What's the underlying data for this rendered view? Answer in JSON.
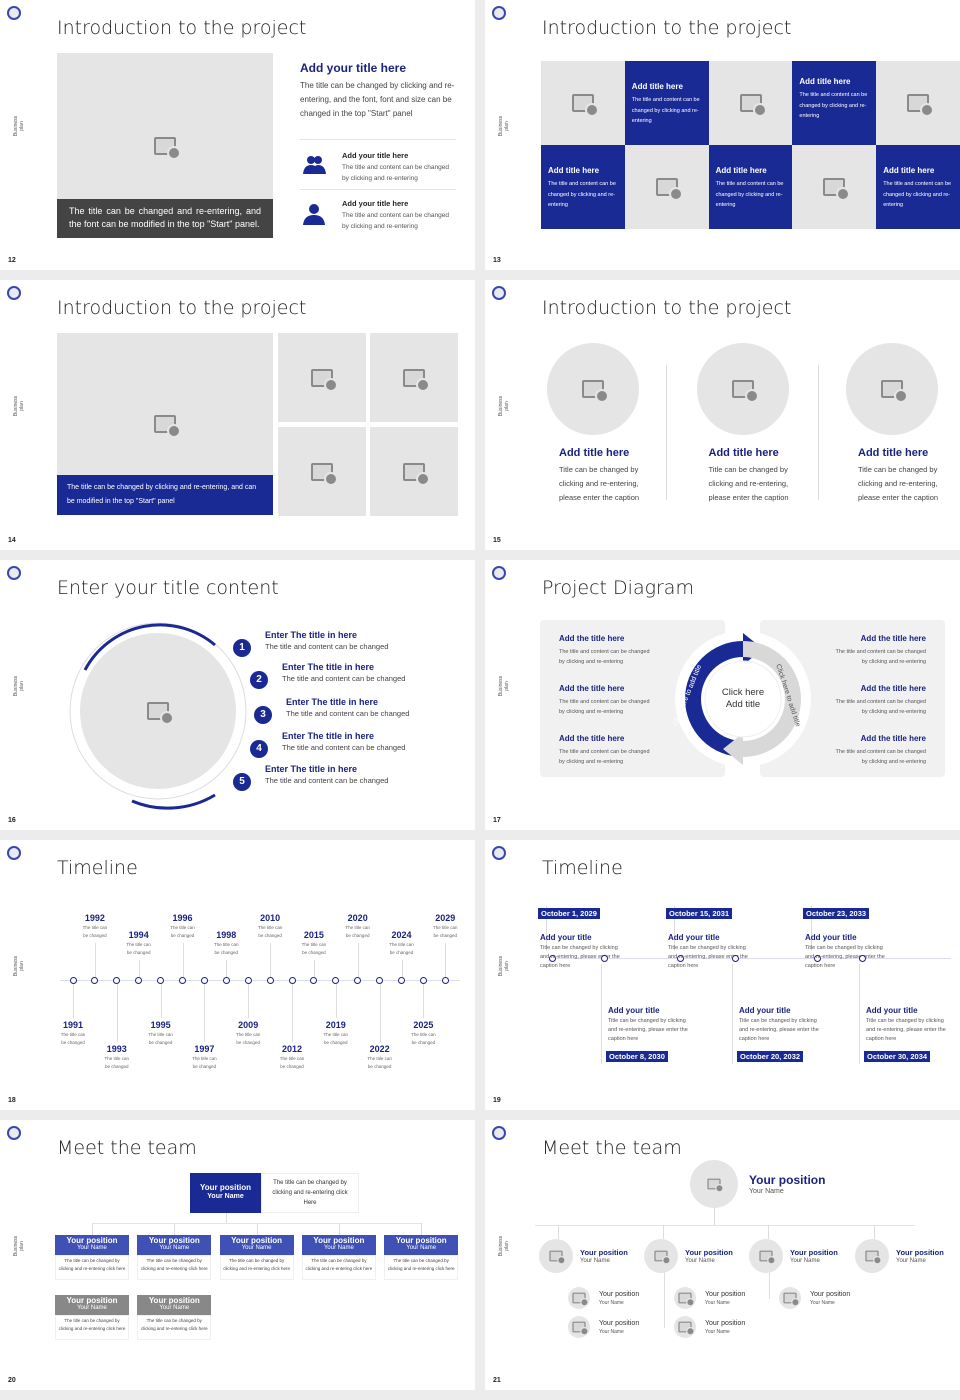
{
  "common": {
    "side_label": "Business plan",
    "accent": "#1a2a94",
    "placeholder_gray": "#e6e5e6"
  },
  "s12": {
    "page": "12",
    "title": "Introduction to the project",
    "caption": "The title can be changed and re-entering, and the font can be modified in the top \"Start\" panel.",
    "heading": "Add your title here",
    "para": "The title can be changed by clicking and re-entering, and the font, font and size can be changed in the top \"Start\" panel",
    "items": [
      {
        "icon": "users-icon",
        "title": "Add your title here",
        "text": "The title and content can be changed by clicking and re-entering"
      },
      {
        "icon": "user-icon",
        "title": "Add your title here",
        "text": "The title and content can be changed by clicking and re-entering"
      }
    ]
  },
  "s13": {
    "page": "13",
    "title": "Introduction to the project",
    "cards": [
      {
        "title": "Add title here",
        "text": "The title and content can be changed by clicking and re-entering"
      },
      {
        "title": "Add title here",
        "text": "The title and content can be changed by clicking and re-entering"
      },
      {
        "title": "Add title here",
        "text": "The title and content can be changed by clicking and re-entering"
      },
      {
        "title": "Add title here",
        "text": "The title and content can be changed by clicking and re-entering"
      },
      {
        "title": "Add title here",
        "text": "The title and content can be changed by clicking and re-entering"
      }
    ]
  },
  "s14": {
    "page": "14",
    "title": "Introduction to the project",
    "caption": "The title can be changed by clicking and re-entering, and can be modified in the top \"Start\" panel"
  },
  "s15": {
    "page": "15",
    "title": "Introduction to the project",
    "cols": [
      {
        "title": "Add title here",
        "text": "Title can be changed by clicking and re-entering, please enter the caption"
      },
      {
        "title": "Add title here",
        "text": "Title can be changed by clicking and re-entering, please enter the caption"
      },
      {
        "title": "Add title here",
        "text": "Title can be changed by clicking and re-entering, please enter the caption"
      }
    ]
  },
  "s16": {
    "page": "16",
    "title": "Enter your title content",
    "items": [
      {
        "n": "1",
        "title": "Enter The title in here",
        "text": "The title and content can be changed"
      },
      {
        "n": "2",
        "title": "Enter The title in here",
        "text": "The title and content can be changed"
      },
      {
        "n": "3",
        "title": "Enter The title in here",
        "text": "The title and content can be changed"
      },
      {
        "n": "4",
        "title": "Enter The title in here",
        "text": "The title and content can be changed"
      },
      {
        "n": "5",
        "title": "Enter The title in here",
        "text": "The title and content can be changed"
      }
    ]
  },
  "s17": {
    "page": "17",
    "title": "Project Diagram",
    "center": "Click here Add title",
    "arc_left": "Click here to add title",
    "arc_right": "Click here to add title",
    "items": [
      {
        "title": "Add the title here",
        "text": "The title and content can be changed by clicking and re-entering"
      },
      {
        "title": "Add the title here",
        "text": "The title and content can be changed by clicking and re-entering"
      },
      {
        "title": "Add the title here",
        "text": "The title and content can be changed by clicking and re-entering"
      },
      {
        "title": "Add the title here",
        "text": "The title and content can be changed by clicking and re-entering"
      },
      {
        "title": "Add the title here",
        "text": "The title and content can be changed by clicking and re-entering"
      },
      {
        "title": "Add the title here",
        "text": "The title and content can be changed by clicking and re-entering"
      }
    ]
  },
  "s18": {
    "page": "18",
    "title": "Timeline",
    "caption": "The title can be changed",
    "years": [
      "1991",
      "1992",
      "1993",
      "1994",
      "1995",
      "1996",
      "1997",
      "1998",
      "2009",
      "2010",
      "2012",
      "2015",
      "2019",
      "2020",
      "2022",
      "2024",
      "2025",
      "2029"
    ]
  },
  "s19": {
    "page": "19",
    "title": "Timeline",
    "events": [
      {
        "date": "October 1, 2029",
        "title": "Add your title",
        "text": "Title can be changed by clicking and re-entering, please enter the caption here"
      },
      {
        "date": "October 8, 2030",
        "title": "Add your title",
        "text": "Title can be changed by clicking and re-entering, please enter the caption here"
      },
      {
        "date": "October 15, 2031",
        "title": "Add your title",
        "text": "Title can be changed by clicking and re-entering, please enter the caption here"
      },
      {
        "date": "October 20, 2032",
        "title": "Add your title",
        "text": "Title can be changed by clicking and re-entering, please enter the caption here"
      },
      {
        "date": "October 23, 2033",
        "title": "Add your title",
        "text": "Title can be changed by clicking and re-entering, please enter the caption here"
      },
      {
        "date": "October 30, 2034",
        "title": "Add your title",
        "text": "Title can be changed by clicking and re-entering, please enter the caption here"
      }
    ]
  },
  "s20": {
    "page": "20",
    "title": "Meet the team",
    "top": {
      "position": "Your position",
      "name": "Your Name",
      "text": "The title can be changed by clicking and re-entering click Here"
    },
    "members": [
      {
        "position": "Your position",
        "name": "Your Name",
        "text": "The title can be changed by clicking and re-entering click here"
      },
      {
        "position": "Your position",
        "name": "Your Name",
        "text": "The title can be changed by clicking and re-entering click here"
      },
      {
        "position": "Your position",
        "name": "Your Name",
        "text": "The title can be changed by clicking and re-entering click here"
      },
      {
        "position": "Your position",
        "name": "Your Name",
        "text": "The title can be changed by clicking and re-entering click here"
      },
      {
        "position": "Your position",
        "name": "Your Name",
        "text": "The title can be changed by clicking and re-entering click here"
      },
      {
        "position": "Your position",
        "name": "Your Name",
        "text": "The title can be changed by clicking and re-entering click here"
      },
      {
        "position": "Your position",
        "name": "Your Name",
        "text": "The title can be changed by clicking and re-entering click here"
      }
    ]
  },
  "s21": {
    "page": "21",
    "title": "Meet the team",
    "top": {
      "position": "Your position",
      "name": "Your Name"
    },
    "level2": [
      {
        "position": "Your position",
        "name": "Your Name"
      },
      {
        "position": "Your position",
        "name": "Your Name"
      },
      {
        "position": "Your position",
        "name": "Your Name"
      },
      {
        "position": "Your position",
        "name": "Your Name"
      }
    ],
    "level3": [
      {
        "position": "Your position",
        "name": "Your Name"
      },
      {
        "position": "Your position",
        "name": "Your Name"
      },
      {
        "position": "Your position",
        "name": "Your Name"
      },
      {
        "position": "Your position",
        "name": "Your Name"
      },
      {
        "position": "Your position",
        "name": "Your Name"
      }
    ]
  }
}
